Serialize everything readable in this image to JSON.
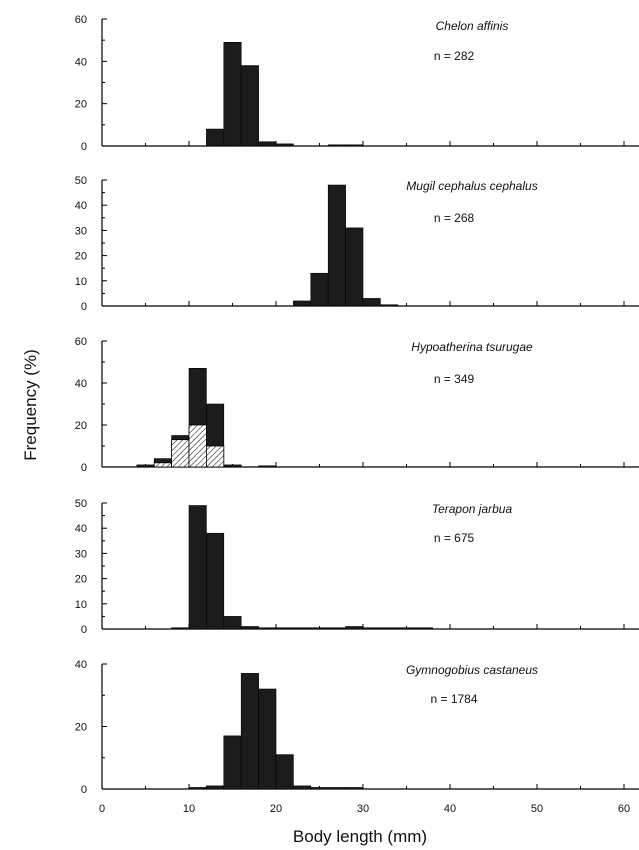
{
  "chart_data": {
    "type": "bar",
    "ylabel": "Frequency (%)",
    "xlabel": "Body length (mm)",
    "x_ticks": [
      0,
      10,
      20,
      30,
      40,
      50,
      60
    ],
    "xlim": [
      0,
      62
    ],
    "bin_width": 2,
    "panels": [
      {
        "species": "Chelon affinis",
        "n_label": "n = 282",
        "ylim": [
          0,
          60
        ],
        "y_ticks": [
          0,
          20,
          40,
          60
        ],
        "bins": [
          {
            "start": 12,
            "value": 8
          },
          {
            "start": 14,
            "value": 49
          },
          {
            "start": 16,
            "value": 38
          },
          {
            "start": 18,
            "value": 2
          },
          {
            "start": 20,
            "value": 1
          },
          {
            "start": 26,
            "value": 0.5
          },
          {
            "start": 28,
            "value": 0.5
          }
        ]
      },
      {
        "species": "Mugil cephalus cephalus",
        "n_label": "n = 268",
        "ylim": [
          0,
          50
        ],
        "y_ticks": [
          0,
          10,
          20,
          30,
          40,
          50
        ],
        "bins": [
          {
            "start": 22,
            "value": 2
          },
          {
            "start": 24,
            "value": 13
          },
          {
            "start": 26,
            "value": 48
          },
          {
            "start": 28,
            "value": 31
          },
          {
            "start": 30,
            "value": 3
          },
          {
            "start": 32,
            "value": 0.5
          }
        ]
      },
      {
        "species": "Hypoatherina tsurugae",
        "n_label": "n = 349",
        "ylim": [
          0,
          60
        ],
        "y_ticks": [
          0,
          20,
          40,
          60
        ],
        "series": [
          "total",
          "hatched"
        ],
        "bins": [
          {
            "start": 4,
            "value": 1,
            "hatched": 0
          },
          {
            "start": 6,
            "value": 4,
            "hatched": 2
          },
          {
            "start": 8,
            "value": 15,
            "hatched": 13
          },
          {
            "start": 10,
            "value": 47,
            "hatched": 20
          },
          {
            "start": 12,
            "value": 30,
            "hatched": 10
          },
          {
            "start": 14,
            "value": 1,
            "hatched": 0
          },
          {
            "start": 18,
            "value": 0.5,
            "hatched": 0
          }
        ]
      },
      {
        "species": "Terapon jarbua",
        "n_label": "n = 675",
        "ylim": [
          0,
          50
        ],
        "y_ticks": [
          0,
          10,
          20,
          30,
          40,
          50
        ],
        "bins": [
          {
            "start": 8,
            "value": 0.5
          },
          {
            "start": 10,
            "value": 49
          },
          {
            "start": 12,
            "value": 38
          },
          {
            "start": 14,
            "value": 5
          },
          {
            "start": 16,
            "value": 1
          },
          {
            "start": 18,
            "value": 0.5
          },
          {
            "start": 20,
            "value": 0.5
          },
          {
            "start": 22,
            "value": 0.5
          },
          {
            "start": 24,
            "value": 0.5
          },
          {
            "start": 26,
            "value": 0.5
          },
          {
            "start": 28,
            "value": 1
          },
          {
            "start": 30,
            "value": 0.5
          },
          {
            "start": 32,
            "value": 0.5
          },
          {
            "start": 34,
            "value": 0.5
          },
          {
            "start": 36,
            "value": 0.5
          }
        ]
      },
      {
        "species": "Gymnogobius castaneus",
        "n_label": "n = 1784",
        "ylim": [
          0,
          40
        ],
        "y_ticks": [
          0,
          20,
          40
        ],
        "bins": [
          {
            "start": 10,
            "value": 0.5
          },
          {
            "start": 12,
            "value": 1
          },
          {
            "start": 14,
            "value": 17
          },
          {
            "start": 16,
            "value": 37
          },
          {
            "start": 18,
            "value": 32
          },
          {
            "start": 20,
            "value": 11
          },
          {
            "start": 22,
            "value": 1
          },
          {
            "start": 24,
            "value": 0.5
          },
          {
            "start": 26,
            "value": 0.5
          },
          {
            "start": 28,
            "value": 0.5
          }
        ]
      }
    ]
  },
  "colors": {
    "bar_fill": "#1c1c1c",
    "axis": "#000000",
    "hatch_fill": "#ffffff"
  }
}
